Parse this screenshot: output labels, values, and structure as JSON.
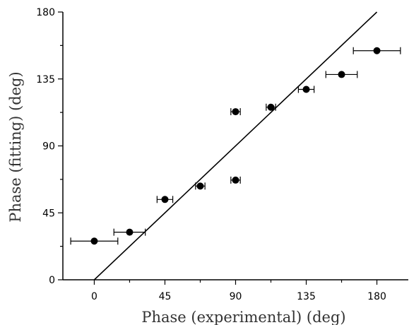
{
  "chart_data": {
    "type": "scatter",
    "xlabel": "Phase (experimental) (deg)",
    "ylabel": "Phase (fitting) (deg)",
    "xlim": [
      -20,
      200
    ],
    "ylim": [
      0,
      180
    ],
    "x_ticks": [
      0,
      45,
      90,
      135,
      180
    ],
    "y_ticks": [
      0,
      45,
      90,
      135,
      180
    ],
    "x_tick_labels": [
      "0",
      "45",
      "90",
      "135",
      "180"
    ],
    "y_tick_labels": [
      "0",
      "45",
      "90",
      "135",
      "180"
    ],
    "x_minor_step": 22.5,
    "y_minor_step": 22.5,
    "grid": false,
    "legend": "none",
    "marker_color": "#000000",
    "points": [
      {
        "x": 0,
        "y": 26,
        "xerr_low": 15,
        "xerr_high": 15
      },
      {
        "x": 22.5,
        "y": 32,
        "xerr_low": 10,
        "xerr_high": 10
      },
      {
        "x": 45,
        "y": 54,
        "xerr_low": 5,
        "xerr_high": 5
      },
      {
        "x": 67.5,
        "y": 63,
        "xerr_low": 3,
        "xerr_high": 3
      },
      {
        "x": 90,
        "y": 67,
        "xerr_low": 3,
        "xerr_high": 3
      },
      {
        "x": 90,
        "y": 113,
        "xerr_low": 3,
        "xerr_high": 3
      },
      {
        "x": 112.5,
        "y": 116,
        "xerr_low": 3,
        "xerr_high": 3
      },
      {
        "x": 135,
        "y": 128,
        "xerr_low": 5,
        "xerr_high": 5
      },
      {
        "x": 157.5,
        "y": 138,
        "xerr_low": 10,
        "xerr_high": 10
      },
      {
        "x": 180,
        "y": 154,
        "xerr_low": 15,
        "xerr_high": 15
      }
    ],
    "reference_line": {
      "x": [
        0,
        180
      ],
      "y": [
        0,
        180
      ]
    }
  }
}
